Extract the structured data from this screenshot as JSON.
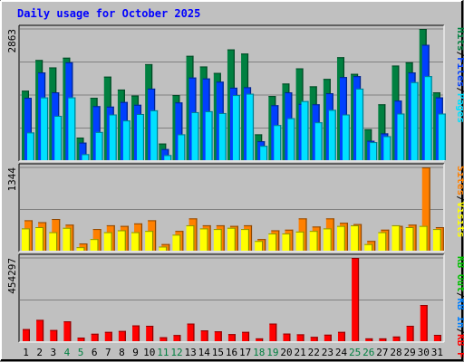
{
  "title": "Daily usage for October 2025",
  "colors": {
    "background": "#c0c0c0",
    "plot_bg": "#c0c0c0",
    "title": "#0000ff",
    "axis_label": "#000000",
    "weekend_label": "#008040",
    "pages": "#00e0ff",
    "files": "#0040ff",
    "hits": "#008040",
    "visits": "#ffff00",
    "sites": "#ff8000",
    "kb_f": "#ff0000",
    "kb_in": "#0080ff",
    "kb_out": "#00c000"
  },
  "chart_data": [
    {
      "type": "bar",
      "panel": "top",
      "ymax_label": "2863",
      "ylim": [
        0,
        2863
      ],
      "categories": [
        "1",
        "2",
        "3",
        "4",
        "5",
        "6",
        "7",
        "8",
        "9",
        "10",
        "11",
        "12",
        "13",
        "14",
        "15",
        "16",
        "17",
        "18",
        "19",
        "20",
        "21",
        "22",
        "23",
        "24",
        "25",
        "26",
        "27",
        "28",
        "29",
        "30",
        "31"
      ],
      "weekend_days": [
        "4",
        "5",
        "11",
        "12",
        "18",
        "19",
        "25",
        "26"
      ],
      "legend": [
        {
          "label": "Pages",
          "color_key": "pages"
        },
        {
          "label": "/",
          "color_key": "axis_label"
        },
        {
          "label": "Files",
          "color_key": "files"
        },
        {
          "label": "/",
          "color_key": "axis_label"
        },
        {
          "label": "Hits",
          "color_key": "hits"
        }
      ],
      "series": [
        {
          "name": "Hits",
          "values": [
            1525,
            2190,
            2030,
            2240,
            510,
            1370,
            1830,
            1550,
            1420,
            2100,
            380,
            1430,
            2280,
            2050,
            1910,
            2420,
            2330,
            580,
            1410,
            1680,
            2010,
            1620,
            1780,
            2250,
            1890,
            690,
            1230,
            2070,
            2140,
            2863,
            1490
          ]
        },
        {
          "name": "Files",
          "values": [
            1370,
            1920,
            1490,
            2140,
            400,
            1190,
            1180,
            1280,
            1220,
            1570,
            260,
            1270,
            1810,
            1790,
            1720,
            1590,
            1600,
            430,
            1210,
            1490,
            1240,
            1230,
            1470,
            1820,
            1840,
            440,
            600,
            1310,
            1920,
            2520,
            1380
          ]
        },
        {
          "name": "Pages",
          "values": [
            620,
            1380,
            980,
            1380,
            150,
            630,
            1010,
            880,
            1020,
            1100,
            130,
            580,
            1060,
            1080,
            1040,
            1430,
            1460,
            330,
            780,
            930,
            1300,
            840,
            1110,
            1010,
            1570,
            410,
            540,
            1030,
            1710,
            1840,
            1030
          ]
        }
      ]
    },
    {
      "type": "bar",
      "panel": "middle",
      "ymax_label": "1344",
      "ylim": [
        0,
        1344
      ],
      "legend": [
        {
          "label": "Visits",
          "color_key": "visits"
        },
        {
          "label": "/",
          "color_key": "axis_label"
        },
        {
          "label": "Sites",
          "color_key": "sites"
        }
      ],
      "series": [
        {
          "name": "Sites",
          "values": [
            500,
            470,
            520,
            430,
            130,
            360,
            420,
            410,
            450,
            500,
            120,
            330,
            530,
            420,
            420,
            410,
            420,
            200,
            340,
            350,
            530,
            400,
            530,
            460,
            440,
            170,
            350,
            410,
            430,
            1344,
            390
          ]
        },
        {
          "name": "Visits",
          "values": [
            370,
            390,
            310,
            380,
            70,
            200,
            310,
            340,
            310,
            330,
            80,
            270,
            420,
            370,
            360,
            380,
            360,
            170,
            290,
            290,
            320,
            330,
            370,
            410,
            420,
            120,
            310,
            420,
            390,
            410,
            360
          ]
        }
      ]
    },
    {
      "type": "bar",
      "panel": "bottom",
      "ymax_label": "454297",
      "ylim": [
        0,
        454297
      ],
      "legend": [
        {
          "label": "KB F",
          "color_key": "kb_f"
        },
        {
          "label": "/",
          "color_key": "axis_label"
        },
        {
          "label": "KB In",
          "color_key": "kb_in"
        },
        {
          "label": "/",
          "color_key": "axis_label"
        },
        {
          "label": "KB Out",
          "color_key": "kb_out"
        }
      ],
      "series": [
        {
          "name": "KB F",
          "values": [
            70000,
            120000,
            65000,
            112000,
            24000,
            45000,
            55000,
            60000,
            90000,
            88000,
            26000,
            38000,
            100000,
            63000,
            58000,
            43000,
            55000,
            20000,
            100000,
            46000,
            42000,
            28000,
            40000,
            55000,
            454297,
            20000,
            20000,
            30000,
            88000,
            200000,
            39000
          ]
        }
      ]
    }
  ]
}
